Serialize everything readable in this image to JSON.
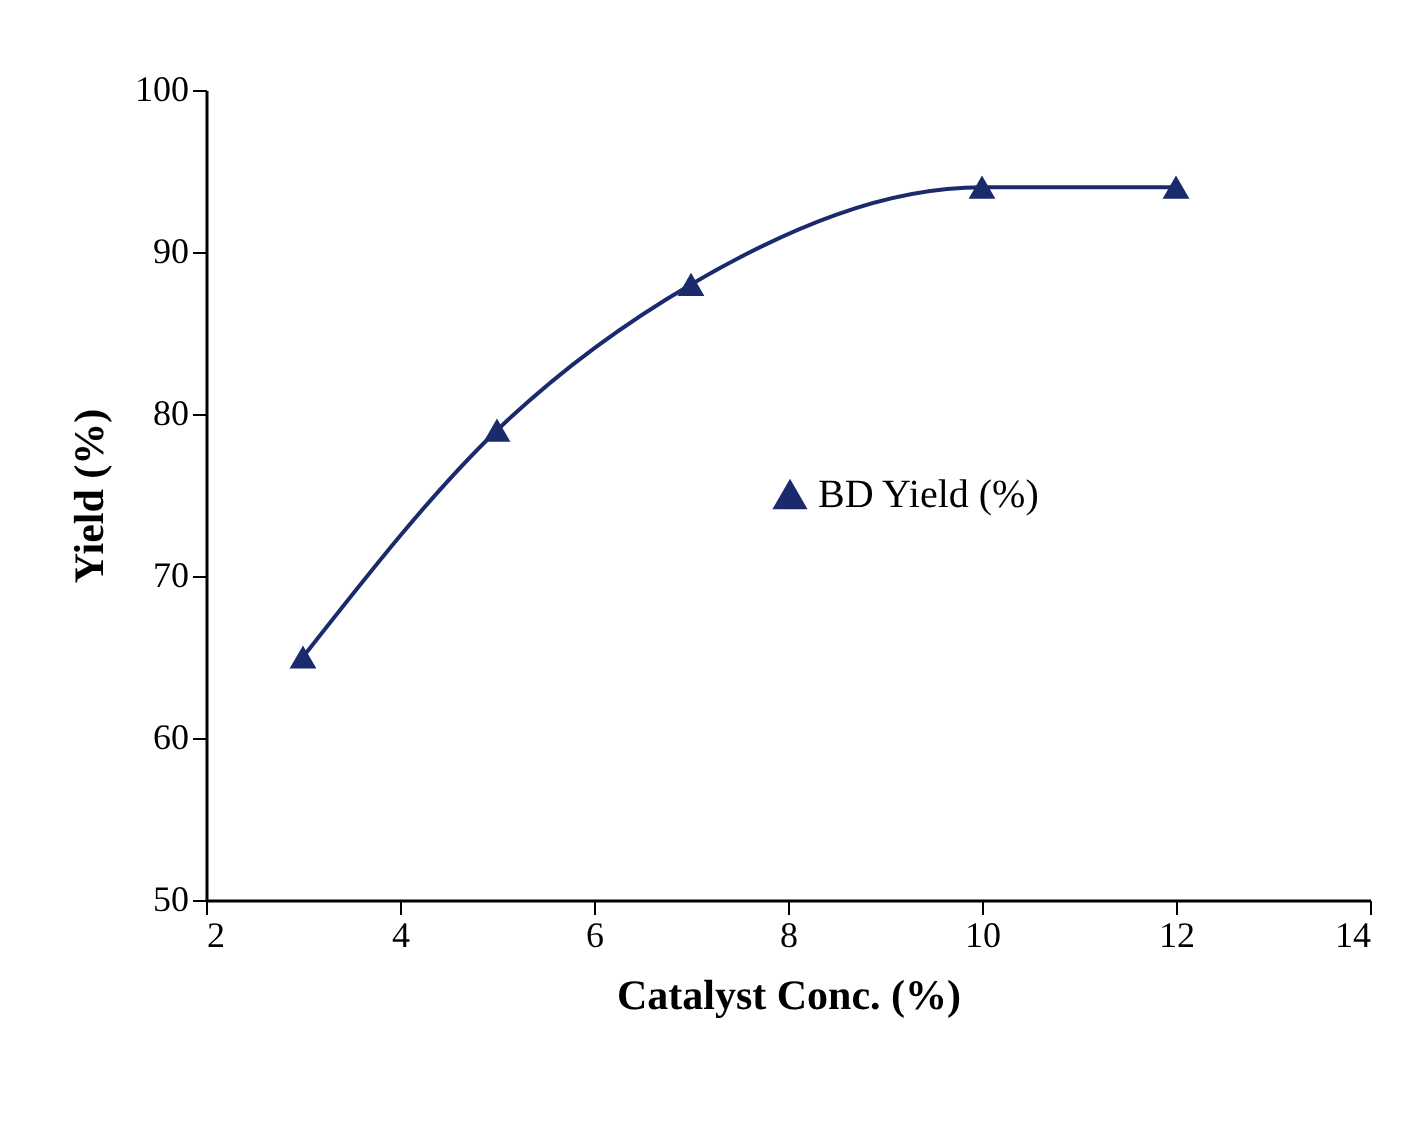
{
  "chart_data": {
    "type": "line",
    "xlabel": "Catalyst Conc. (%)",
    "ylabel": "Yield (%)",
    "x": [
      3,
      5,
      7,
      10,
      12
    ],
    "series": [
      {
        "name": "BD Yield (%)",
        "color": "#1a2a6c",
        "values": [
          65,
          79,
          88,
          94,
          94
        ]
      }
    ],
    "xlim": [
      2,
      14
    ],
    "xticks": [
      2,
      4,
      6,
      8,
      10,
      12,
      14
    ],
    "ylim": [
      50,
      100
    ],
    "yticks": [
      50,
      60,
      70,
      80,
      90,
      100
    ],
    "grid": false,
    "legend": "right",
    "marker": "triangle",
    "line_style": "solid"
  }
}
